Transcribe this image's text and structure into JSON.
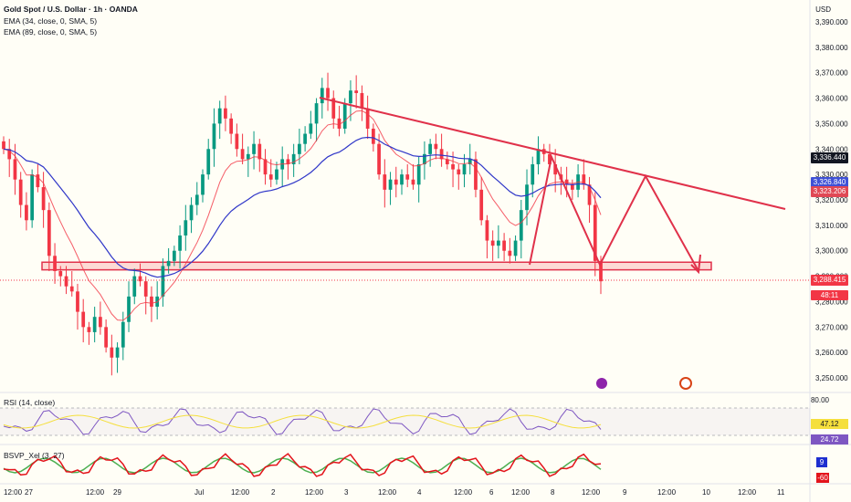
{
  "header": {
    "title": "Gold Spot / U.S. Dollar · 1h · OANDA",
    "ema1": "EMA (34, close, 0, SMA, 5)",
    "ema2": "EMA (89, close, 0, SMA, 5)",
    "currency": "USD"
  },
  "price_axis": {
    "ticks": [
      "3,390.000",
      "3,380.000",
      "3,370.000",
      "3,360.000",
      "3,350.000",
      "3,340.000",
      "3,330.000",
      "3,320.000",
      "3,310.000",
      "3,300.000",
      "3,290.000",
      "3,280.000",
      "3,270.000",
      "3,260.000",
      "3,250.000"
    ],
    "tick_values": [
      3390,
      3380,
      3370,
      3360,
      3350,
      3340,
      3330,
      3320,
      3310,
      3300,
      3290,
      3280,
      3270,
      3260,
      3250
    ],
    "labels": [
      {
        "text": "3,336.440",
        "value": 3336.44,
        "color": "#131722"
      },
      {
        "text": "3,326.840",
        "value": 3326.84,
        "color": "#3f51d6"
      },
      {
        "text": "3,323.206",
        "value": 3323.206,
        "color": "#e04855"
      },
      {
        "text": "3,288.415",
        "value": 3288.415,
        "color": "#f23645"
      }
    ],
    "countdown": "48:11"
  },
  "time_axis": {
    "labels": [
      "12:00",
      "27",
      "12:00",
      "29",
      "Jul",
      "12:00",
      "2",
      "12:00",
      "3",
      "12:00",
      "4",
      "12:00",
      "6",
      "12:00",
      "8",
      "12:00",
      "9",
      "12:00",
      "10",
      "12:00",
      "11"
    ]
  },
  "rsi": {
    "label": "RSI (14, close)",
    "level_high": "80.00",
    "value1": "47.12",
    "value2": "24.72"
  },
  "bsvp": {
    "label": "BSVP_Xel (3, 27)",
    "value1": "9",
    "value2": "-60"
  },
  "colors": {
    "up": "#089981",
    "down": "#f23645",
    "ema34": "#f23645",
    "ema89": "#2f36c8",
    "trend": "#e0314a",
    "background": "#fffef6"
  },
  "chart_data": {
    "type": "candlestick",
    "symbol": "XAUUSD",
    "timeframe": "1h",
    "ylim": [
      3245,
      3395
    ],
    "annotations": {
      "trendline": [
        [
          3366.5,
          "Jul 3 start"
        ],
        [
          3318,
          "Jul 11"
        ]
      ],
      "support_zone": [
        3292.5,
        3295.5
      ],
      "projection_path": [
        3297,
        3343,
        3290,
        3336,
        3293
      ]
    },
    "closes": [
      3340,
      3336,
      3328,
      3318,
      3312,
      3330,
      3325,
      3316,
      3298,
      3292,
      3290,
      3286,
      3284,
      3276,
      3270,
      3268,
      3274,
      3270,
      3262,
      3258,
      3262,
      3272,
      3282,
      3290,
      3288,
      3282,
      3278,
      3282,
      3294,
      3296,
      3300,
      3306,
      3312,
      3318,
      3322,
      3330,
      3340,
      3350,
      3356,
      3352,
      3346,
      3340,
      3336,
      3338,
      3342,
      3336,
      3330,
      3328,
      3332,
      3336,
      3334,
      3338,
      3342,
      3346,
      3350,
      3358,
      3364,
      3360,
      3352,
      3348,
      3358,
      3363,
      3362,
      3356,
      3348,
      3342,
      3330,
      3324,
      3328,
      3326,
      3330,
      3328,
      3326,
      3334,
      3338,
      3342,
      3340,
      3336,
      3334,
      3332,
      3330,
      3334,
      3336,
      3324,
      3312,
      3304,
      3302,
      3304,
      3300,
      3298,
      3304,
      3316,
      3326,
      3334,
      3340,
      3338,
      3334,
      3330,
      3328,
      3326,
      3324,
      3330,
      3326,
      3318,
      3296,
      3288
    ]
  }
}
